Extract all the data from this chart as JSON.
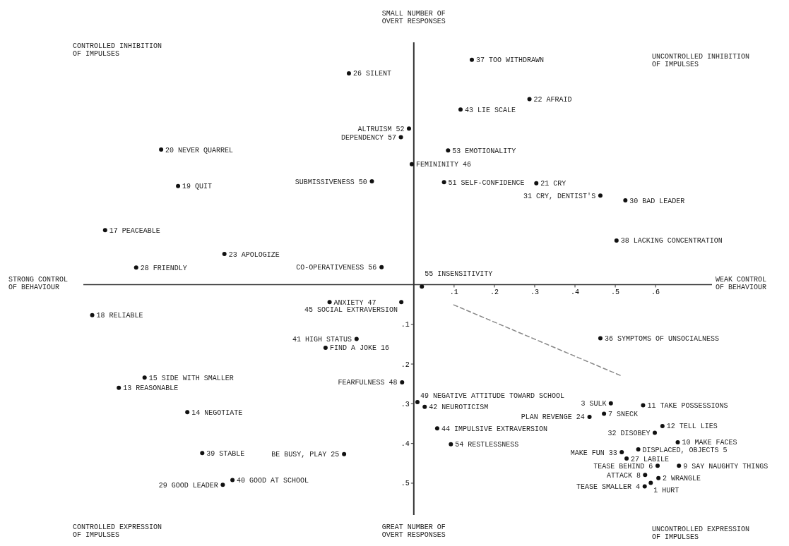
{
  "chart_data": {
    "type": "scatter",
    "xlim": [
      -0.82,
      0.74
    ],
    "ylim": [
      0.58,
      -0.61
    ],
    "xticks": [
      {
        "value": 0.1,
        "label": ".1"
      },
      {
        "value": 0.2,
        "label": ".2"
      },
      {
        "value": 0.3,
        "label": ".3"
      },
      {
        "value": 0.4,
        "label": ".4"
      },
      {
        "value": 0.5,
        "label": ".5"
      },
      {
        "value": 0.6,
        "label": ".6"
      }
    ],
    "yticks": [
      {
        "value": 0.1,
        "label": ".1"
      },
      {
        "value": 0.2,
        "label": ".2"
      },
      {
        "value": 0.3,
        "label": ".3"
      },
      {
        "value": 0.4,
        "label": ".4"
      },
      {
        "value": 0.5,
        "label": ".5"
      }
    ],
    "grid": false,
    "marker": "circle",
    "annotations": [
      "CONTROLLED INHIBITION\nOF IMPULSES",
      "UNCONTROLLED INHIBITION\nOF IMPULSES",
      "CONTROLLED EXPRESSION\nOF IMPULSES",
      "UNCONTROLLED EXPRESSION\nOF IMPULSES",
      "SMALL NUMBER OF\nOVERT RESPONSES",
      "WEAK CONTROL\nOF BEHAVIOUR",
      "GREAT NUMBER OF\nOVERT RESPONSES",
      "STRONG CONTROL\nOF BEHAVIOUR",
      {
        "text": "37 TOO WITHDRAWN",
        "x": 0.144,
        "y": -0.566
      },
      {
        "text": "26 SILENT",
        "x": -0.161,
        "y": -0.532
      },
      {
        "text": "22 AFRAID",
        "x": 0.287,
        "y": -0.467
      },
      {
        "text": "43 LIE SCALE",
        "x": 0.116,
        "y": -0.441
      },
      {
        "text": "ALTRUISM 52",
        "x": -0.012,
        "y": -0.393
      },
      {
        "text": "DEPENDENCY 57",
        "x": -0.032,
        "y": -0.371
      },
      {
        "text": "20 NEVER QUARREL",
        "x": -0.627,
        "y": -0.34
      },
      {
        "text": "53 EMOTIONALITY",
        "x": 0.085,
        "y": -0.338
      },
      {
        "text": "FEMININITY 46",
        "x": -0.005,
        "y": -0.303
      },
      {
        "text": "SUBMISSIVENESS 50",
        "x": -0.104,
        "y": -0.26
      },
      {
        "text": "51 SELF-CONFIDENCE",
        "x": 0.075,
        "y": -0.258
      },
      {
        "text": "21 CRY",
        "x": 0.304,
        "y": -0.255
      },
      {
        "text": "19 QUIT",
        "x": -0.585,
        "y": -0.248
      },
      {
        "text": "31 CRY, DENTIST'S",
        "x": 0.463,
        "y": -0.224
      },
      {
        "text": "30 BAD LEADER",
        "x": 0.525,
        "y": -0.212
      },
      {
        "text": "17 PEACEABLE",
        "x": -0.766,
        "y": -0.137
      },
      {
        "text": "38 LACKING CONCENTRATION",
        "x": 0.503,
        "y": -0.111
      },
      {
        "text": "23 APOLOGIZE",
        "x": -0.47,
        "y": -0.077
      },
      {
        "text": "28 FRIENDLY",
        "x": -0.689,
        "y": -0.043
      },
      {
        "text": "CO-OPERATIVENESS 56",
        "x": -0.08,
        "y": -0.044
      },
      {
        "text": "55 INSENSITIVITY",
        "x": 0.02,
        "y": 0.005
      },
      {
        "text": "ANXIETY 47",
        "x": -0.209,
        "y": 0.044
      },
      {
        "text": "45 SOCIAL EXTRAVERSION",
        "x": -0.031,
        "y": 0.044
      },
      {
        "text": "18 RELIABLE",
        "x": -0.798,
        "y": 0.077
      },
      {
        "text": "41 HIGH STATUS",
        "x": -0.142,
        "y": 0.137
      },
      {
        "text": "FIND A JOKE 16",
        "x": -0.219,
        "y": 0.159
      },
      {
        "text": "36 SYMPTOMS OF UNSOCIALNESS",
        "x": 0.463,
        "y": 0.135
      },
      {
        "text": "15 SIDE WITH SMALLER",
        "x": -0.668,
        "y": 0.234
      },
      {
        "text": "FEARFULNESS 48",
        "x": -0.029,
        "y": 0.246
      },
      {
        "text": "13 REASONABLE",
        "x": -0.732,
        "y": 0.26
      },
      {
        "text": "49 NEGATIVE ATTITUDE TOWARD SCHOOL",
        "x": 0.009,
        "y": 0.296
      },
      {
        "text": "3 SULK",
        "x": 0.489,
        "y": 0.299
      },
      {
        "text": "11 TAKE POSSESSIONS",
        "x": 0.569,
        "y": 0.304
      },
      {
        "text": "42 NEUROTICISM",
        "x": 0.027,
        "y": 0.308
      },
      {
        "text": "7 SNECK",
        "x": 0.472,
        "y": 0.325
      },
      {
        "text": "14 NEGOTIATE",
        "x": -0.562,
        "y": 0.321
      },
      {
        "text": "PLAN REVENGE 24",
        "x": 0.436,
        "y": 0.333
      },
      {
        "text": "12 TELL LIES",
        "x": 0.617,
        "y": 0.356
      },
      {
        "text": "44 IMPULSIVE EXTRAVERSION",
        "x": 0.058,
        "y": 0.362
      },
      {
        "text": "32 DISOBEY",
        "x": 0.598,
        "y": 0.373
      },
      {
        "text": "54 RESTLESSNESS",
        "x": 0.092,
        "y": 0.402
      },
      {
        "text": "10 MAKE FACES",
        "x": 0.655,
        "y": 0.397
      },
      {
        "text": "DISPLACED, OBJECTS 5",
        "x": 0.557,
        "y": 0.415
      },
      {
        "text": "BE BUSY, PLAY 25",
        "x": -0.173,
        "y": 0.427
      },
      {
        "text": "39 STABLE",
        "x": -0.525,
        "y": 0.424
      },
      {
        "text": "MAKE FUN 33",
        "x": 0.516,
        "y": 0.422
      },
      {
        "text": "27 LABILE",
        "x": 0.528,
        "y": 0.438
      },
      {
        "text": "TEASE BEHIND 6",
        "x": 0.605,
        "y": 0.456
      },
      {
        "text": "9 SAY NAUGHTY THINGS",
        "x": 0.658,
        "y": 0.456
      },
      {
        "text": "40 GOOD AT SCHOOL",
        "x": -0.45,
        "y": 0.492
      },
      {
        "text": "ATTACK 8",
        "x": 0.574,
        "y": 0.479
      },
      {
        "text": "2 WRANGLE",
        "x": 0.607,
        "y": 0.487
      },
      {
        "text": "29 GOOD LEADER",
        "x": -0.474,
        "y": 0.504
      },
      {
        "text": "1 HURT",
        "x": 0.588,
        "y": 0.499
      },
      {
        "text": "TEASE SMALLER 4",
        "x": 0.573,
        "y": 0.508
      }
    ],
    "series": [
      {
        "color": "#111111",
        "x": [
          0.144,
          -0.161,
          0.287,
          0.116,
          -0.012,
          -0.032,
          -0.627,
          0.085,
          -0.005,
          -0.104,
          0.075,
          0.304,
          -0.585,
          0.463,
          0.525,
          -0.766,
          0.503,
          -0.47,
          -0.689,
          -0.08,
          0.02,
          -0.209,
          -0.031,
          -0.798,
          -0.142,
          -0.219,
          0.463,
          -0.668,
          -0.029,
          -0.732,
          0.009,
          0.489,
          0.569,
          0.027,
          0.472,
          -0.562,
          0.436,
          0.617,
          0.058,
          0.598,
          0.092,
          0.655,
          0.557,
          -0.173,
          -0.525,
          0.516,
          0.528,
          0.605,
          0.658,
          -0.45,
          0.574,
          0.607,
          -0.474,
          0.588,
          0.573
        ],
        "values": [
          -0.566,
          -0.532,
          -0.467,
          -0.441,
          -0.393,
          -0.371,
          -0.34,
          -0.338,
          -0.303,
          -0.26,
          -0.258,
          -0.255,
          -0.248,
          -0.224,
          -0.212,
          -0.137,
          -0.111,
          -0.077,
          -0.043,
          -0.044,
          0.005,
          0.044,
          0.044,
          0.077,
          0.137,
          0.159,
          0.135,
          0.234,
          0.246,
          0.26,
          0.296,
          0.299,
          0.304,
          0.308,
          0.325,
          0.321,
          0.333,
          0.356,
          0.362,
          0.373,
          0.402,
          0.397,
          0.415,
          0.427,
          0.424,
          0.422,
          0.438,
          0.456,
          0.456,
          0.492,
          0.479,
          0.487,
          0.504,
          0.499,
          0.508
        ]
      },
      {
        "type": "line",
        "color": "#888888",
        "line_style": "dashed",
        "marker": "none",
        "x": [
          0.099,
          0.518
        ],
        "values": [
          0.051,
          0.231
        ]
      }
    ]
  }
}
